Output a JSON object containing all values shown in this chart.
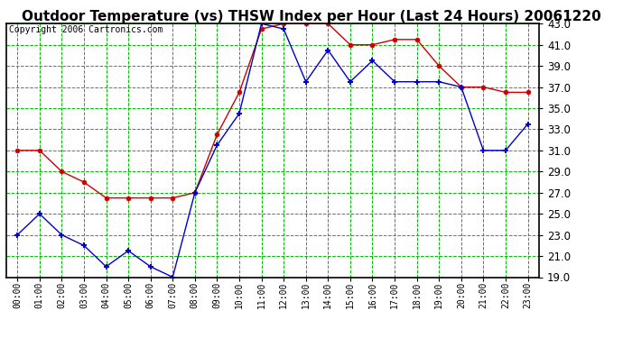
{
  "title": "Outdoor Temperature (vs) THSW Index per Hour (Last 24 Hours) 20061220",
  "copyright": "Copyright 2006 Cartronics.com",
  "x_labels": [
    "00:00",
    "01:00",
    "02:00",
    "03:00",
    "04:00",
    "05:00",
    "06:00",
    "07:00",
    "08:00",
    "09:00",
    "10:00",
    "11:00",
    "12:00",
    "13:00",
    "14:00",
    "15:00",
    "16:00",
    "17:00",
    "18:00",
    "19:00",
    "20:00",
    "21:00",
    "22:00",
    "23:00"
  ],
  "temp_data": [
    23.0,
    25.0,
    23.0,
    22.0,
    20.0,
    21.5,
    20.0,
    19.0,
    27.0,
    31.5,
    34.5,
    43.0,
    42.5,
    37.5,
    40.5,
    37.5,
    39.5,
    37.5,
    37.5,
    37.5,
    37.0,
    31.0,
    31.0,
    33.5
  ],
  "thsw_data": [
    31.0,
    31.0,
    29.0,
    28.0,
    26.5,
    26.5,
    26.5,
    26.5,
    27.0,
    32.5,
    36.5,
    42.5,
    43.0,
    43.0,
    43.0,
    41.0,
    41.0,
    41.5,
    41.5,
    39.0,
    37.0,
    37.0,
    36.5,
    36.5
  ],
  "temp_color": "#0000cc",
  "thsw_color": "#cc0000",
  "ylim_min": 19.0,
  "ylim_max": 43.0,
  "ytick_step": 2.0,
  "background_color": "#ffffff",
  "plot_bg_color": "#ffffff",
  "grid_color": "#00bb00",
  "title_fontsize": 11,
  "copyright_fontsize": 7,
  "axis_label_color": "#000000"
}
